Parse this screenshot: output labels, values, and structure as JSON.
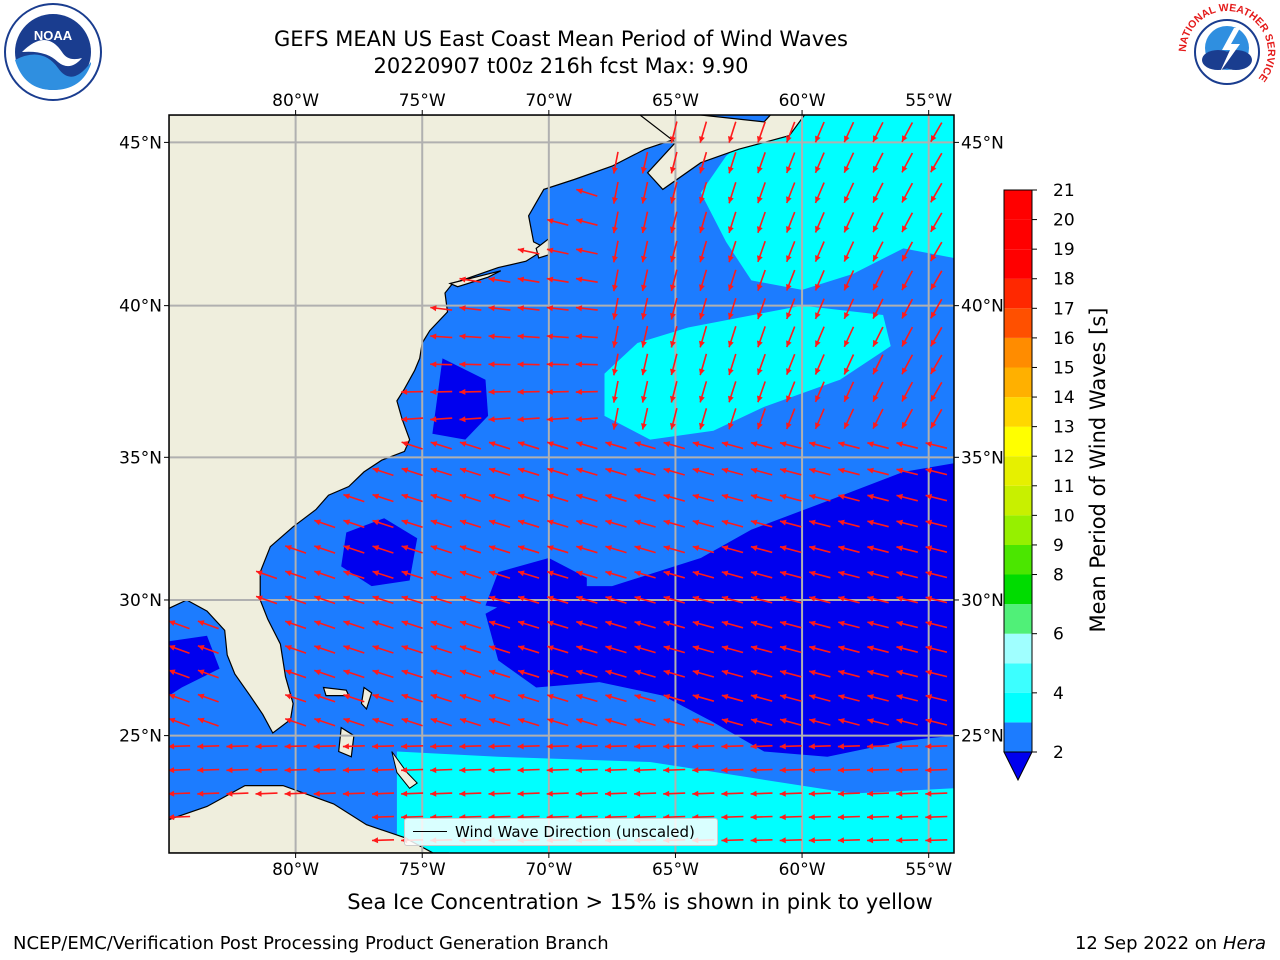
{
  "title": {
    "line1": "GEFS MEAN US East Coast Mean Period of Wind Waves",
    "line2": "20220907 t00z 216h fcst   Max: 9.90"
  },
  "map": {
    "type": "contour map with wind-wave direction vectors",
    "lon_range": [
      -85,
      -54
    ],
    "lat_range": [
      20.5,
      45.8
    ],
    "lon_ticks": [
      -80,
      -75,
      -70,
      -65,
      -60,
      -55
    ],
    "lat_ticks": [
      25,
      30,
      35,
      40,
      45
    ],
    "lon_tick_labels": [
      "80°W",
      "75°W",
      "70°W",
      "65°W",
      "60°W",
      "55°W"
    ],
    "lat_tick_labels": [
      "25°N",
      "30°N",
      "35°N",
      "40°N",
      "45°N"
    ],
    "grid": true,
    "arrow_color": "#ff1a1a",
    "land_color": "#efeedd",
    "legend_label": "Wind Wave Direction (unscaled)",
    "colors": {
      "band_2_4": "#1c7cff",
      "band_4_6": "#00ffff",
      "band_6_8": "#3cffff",
      "below_2": "#0000ee"
    }
  },
  "colorbar": {
    "label": "Mean Period of Wind Waves [s]",
    "extend": "min",
    "levels": [
      2,
      3,
      4,
      5,
      6,
      7,
      8,
      9,
      10,
      11,
      12,
      13,
      14,
      15,
      16,
      17,
      18,
      19,
      20,
      21
    ],
    "tick_labels": [
      "2",
      "4",
      "6",
      "8",
      "9",
      "10",
      "11",
      "12",
      "13",
      "14",
      "15",
      "16",
      "17",
      "18",
      "19",
      "20",
      "21"
    ],
    "tick_values": [
      2,
      4,
      6,
      8,
      9,
      10,
      11,
      12,
      13,
      14,
      15,
      16,
      17,
      18,
      19,
      20,
      21
    ],
    "band_colors": [
      "#0000ee",
      "#1c7cff",
      "#00ffff",
      "#3cffff",
      "#a0ffff",
      "#50f078",
      "#00dc00",
      "#4be600",
      "#96f000",
      "#c8f000",
      "#e6f000",
      "#ffff00",
      "#ffd700",
      "#ffb000",
      "#ff8c00",
      "#ff5000",
      "#ff2800",
      "#ff0000"
    ]
  },
  "note": "Sea Ice Concentration > 15% is shown in pink to yellow",
  "footer": {
    "left": "NCEP/EMC/Verification Post Processing Product Generation Branch",
    "right_date": "12 Sep 2022 on",
    "right_host": "Hera"
  },
  "logos": {
    "noaa": {
      "text": "NOAA",
      "ring_text": "NATIONAL OCEANIC AND ATMOSPHERIC ADMINISTRATION · U.S. DEPARTMENT OF COMMERCE"
    },
    "nws": {
      "ring_text": "NATIONAL WEATHER SERVICE"
    }
  }
}
